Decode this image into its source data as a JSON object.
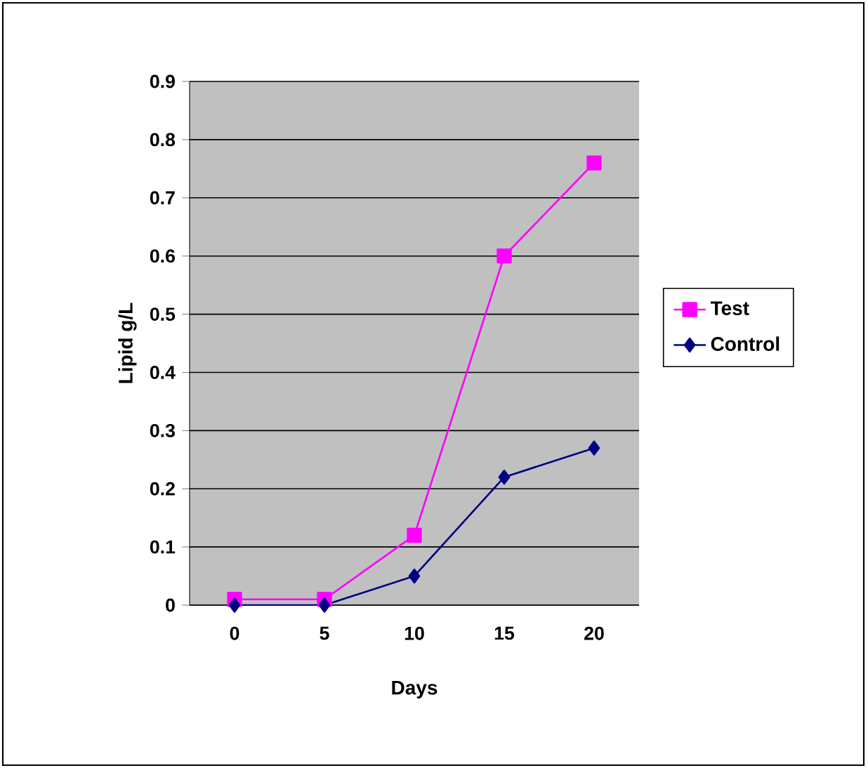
{
  "chart_data": {
    "type": "line",
    "xlabel": "Days",
    "ylabel": "Lipid g/L",
    "categories": [
      "0",
      "5",
      "10",
      "15",
      "20"
    ],
    "series": [
      {
        "name": "Test",
        "color": "#ff00ff",
        "marker": "square",
        "values": [
          0.01,
          0.01,
          0.12,
          0.6,
          0.76
        ]
      },
      {
        "name": "Control",
        "color": "#000080",
        "marker": "diamond",
        "values": [
          0,
          0,
          0.05,
          0.22,
          0.27
        ]
      }
    ],
    "ylim": [
      0,
      0.9
    ],
    "yticks": [
      0,
      0.1,
      0.2,
      0.3,
      0.4,
      0.5,
      0.6,
      0.7,
      0.8,
      0.9
    ],
    "grid": "y",
    "legend": "right"
  }
}
